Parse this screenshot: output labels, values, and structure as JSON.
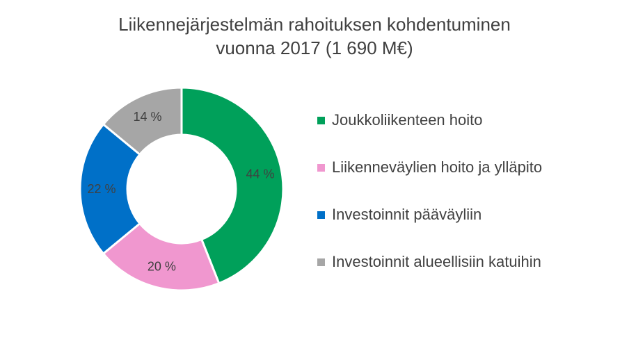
{
  "chart_data": {
    "type": "pie",
    "style": "donut",
    "title_lines": [
      "Liikennejärjestelmän rahoituksen kohdentuminen",
      "vuonna 2017 (1 690 M€)"
    ],
    "legend_position": "right",
    "slices": [
      {
        "name": "Joukkoliikenteen hoito",
        "value": 44,
        "label": "44 %",
        "color": "#00A05A"
      },
      {
        "name": "Liikenneväylien hoito ja ylläpito",
        "value": 20,
        "label": "20 %",
        "color": "#F097CF"
      },
      {
        "name": "Investoinnit pääväyliin",
        "value": 22,
        "label": "22 %",
        "color": "#0070C8"
      },
      {
        "name": "Investoinnit alueellisiin katuihin",
        "value": 14,
        "label": "14 %",
        "color": "#A6A6A6"
      }
    ]
  }
}
